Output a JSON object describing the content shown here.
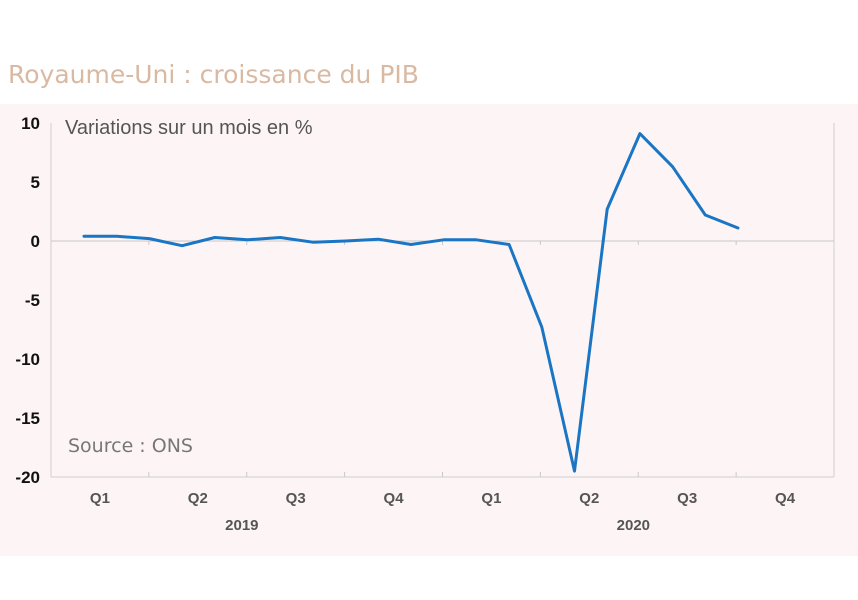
{
  "title": "Royaume-Uni : croissance du PIB",
  "chart_data": {
    "type": "line",
    "title": "Royaume-Uni : croissance du PIB",
    "ylabel": "Variations sur un mois en %",
    "source": "Source : ONS",
    "ylim": [
      -20,
      10
    ],
    "yticks": [
      10,
      5,
      0,
      -5,
      -10,
      -15,
      -20
    ],
    "quarters": [
      "Q1",
      "Q2",
      "Q3",
      "Q4",
      "Q1",
      "Q2",
      "Q3",
      "Q4"
    ],
    "years": [
      "2019",
      "2020"
    ],
    "series_color": "#1a75c4",
    "series": [
      {
        "values": [
          0.4,
          0.4,
          0.2,
          -0.4,
          0.3,
          0.1,
          0.3,
          -0.1,
          0.0,
          0.15,
          -0.3,
          0.1,
          0.1,
          -0.3,
          -7.3,
          -19.5,
          2.7,
          9.1,
          6.3,
          2.2,
          1.1
        ]
      }
    ]
  }
}
